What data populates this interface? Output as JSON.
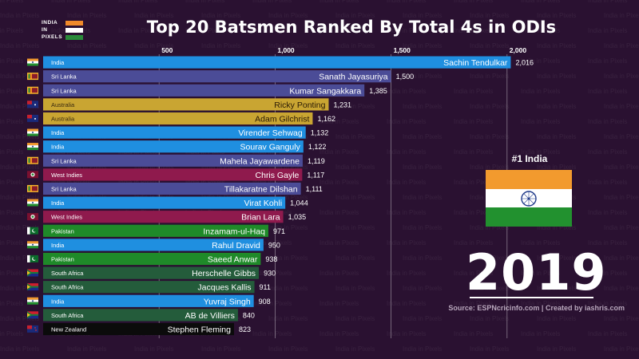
{
  "logo": {
    "line1": "INDIA",
    "line2": "IN",
    "line3": "PIXELS"
  },
  "watermark_text": "India in Pixels",
  "title": "Top 20 Batsmen Ranked By Total 4s in ODIs",
  "source": "Source: ESPNcricinfo.com | Created by iashris.com",
  "leader": {
    "rank_label": "#1 India",
    "flag": "india"
  },
  "year": "2019",
  "colors": {
    "India": "#1f8fe0",
    "Sri Lanka": "#4b4c97",
    "Australia": "#c9a532",
    "West Indies": "#8f1a4d",
    "Pakistan": "#1f8a29",
    "South Africa": "#245c3b",
    "New Zealand": "#0b0b0b"
  },
  "chart_data": {
    "type": "bar",
    "orientation": "horizontal",
    "title": "Top 20 Batsmen Ranked By Total 4s in ODIs",
    "xticks": [
      500,
      1000,
      1500,
      2000
    ],
    "xtick_labels": [
      "500",
      "1,000",
      "1,500",
      "2,000"
    ],
    "bars": [
      {
        "name": "Sachin Tendulkar",
        "country": "India",
        "value": 2016,
        "value_label": "2,016"
      },
      {
        "name": "Sanath Jayasuriya",
        "country": "Sri Lanka",
        "value": 1500,
        "value_label": "1,500"
      },
      {
        "name": "Kumar Sangakkara",
        "country": "Sri Lanka",
        "value": 1385,
        "value_label": "1,385"
      },
      {
        "name": "Ricky Ponting",
        "country": "Australia",
        "value": 1231,
        "value_label": "1,231"
      },
      {
        "name": "Adam Gilchrist",
        "country": "Australia",
        "value": 1162,
        "value_label": "1,162"
      },
      {
        "name": "Virender Sehwag",
        "country": "India",
        "value": 1132,
        "value_label": "1,132"
      },
      {
        "name": "Sourav Ganguly",
        "country": "India",
        "value": 1122,
        "value_label": "1,122"
      },
      {
        "name": "Mahela Jayawardene",
        "country": "Sri Lanka",
        "value": 1119,
        "value_label": "1,119"
      },
      {
        "name": "Chris Gayle",
        "country": "West Indies",
        "value": 1117,
        "value_label": "1,117"
      },
      {
        "name": "Tillakaratne Dilshan",
        "country": "Sri Lanka",
        "value": 1111,
        "value_label": "1,111"
      },
      {
        "name": "Virat Kohli",
        "country": "India",
        "value": 1044,
        "value_label": "1,044"
      },
      {
        "name": "Brian Lara",
        "country": "West Indies",
        "value": 1035,
        "value_label": "1,035"
      },
      {
        "name": "Inzamam-ul-Haq",
        "country": "Pakistan",
        "value": 971,
        "value_label": "971"
      },
      {
        "name": "Rahul Dravid",
        "country": "India",
        "value": 950,
        "value_label": "950"
      },
      {
        "name": "Saeed Anwar",
        "country": "Pakistan",
        "value": 938,
        "value_label": "938"
      },
      {
        "name": "Herschelle Gibbs",
        "country": "South Africa",
        "value": 930,
        "value_label": "930"
      },
      {
        "name": "Jacques Kallis",
        "country": "South Africa",
        "value": 911,
        "value_label": "911"
      },
      {
        "name": "Yuvraj Singh",
        "country": "India",
        "value": 908,
        "value_label": "908"
      },
      {
        "name": "AB de Villiers",
        "country": "South Africa",
        "value": 840,
        "value_label": "840"
      },
      {
        "name": "Stephen Fleming",
        "country": "New Zealand",
        "value": 823,
        "value_label": "823"
      }
    ]
  }
}
